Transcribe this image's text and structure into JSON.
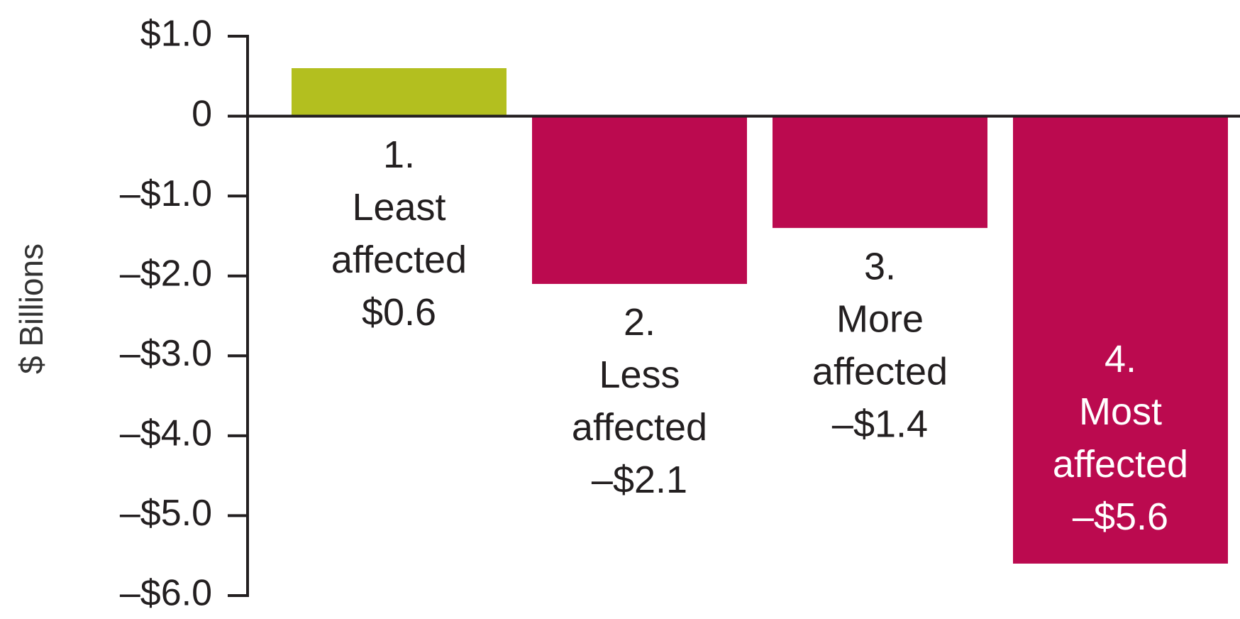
{
  "chart_data": {
    "type": "bar",
    "y_label": "$ Billions",
    "categories": [
      [
        "1.",
        "Least",
        "affected"
      ],
      [
        "2.",
        "Less",
        "affected"
      ],
      [
        "3.",
        "More",
        "affected"
      ],
      [
        "4.",
        "Most",
        "affected"
      ]
    ],
    "values": [
      0.6,
      -2.1,
      -1.4,
      -5.6
    ],
    "value_labels": [
      "$0.6",
      "–$2.1",
      "–$1.4",
      "–$5.6"
    ],
    "colors": [
      "#b3bf1f",
      "#bb0a4f",
      "#bb0a4f",
      "#bb0a4f"
    ],
    "ylim": [
      -6,
      1
    ],
    "yticks": [
      {
        "value": 1,
        "label": "$1.0"
      },
      0,
      {
        "value": -1,
        "label": "–$1.0"
      },
      {
        "value": -2,
        "label": "–$2.0"
      },
      {
        "value": -3,
        "label": "–$3.0"
      },
      {
        "value": -4,
        "label": "–$4.0"
      },
      {
        "value": -5,
        "label": "–$5.0"
      },
      {
        "value": -6,
        "label": "–$6.0"
      }
    ],
    "grid": false
  }
}
